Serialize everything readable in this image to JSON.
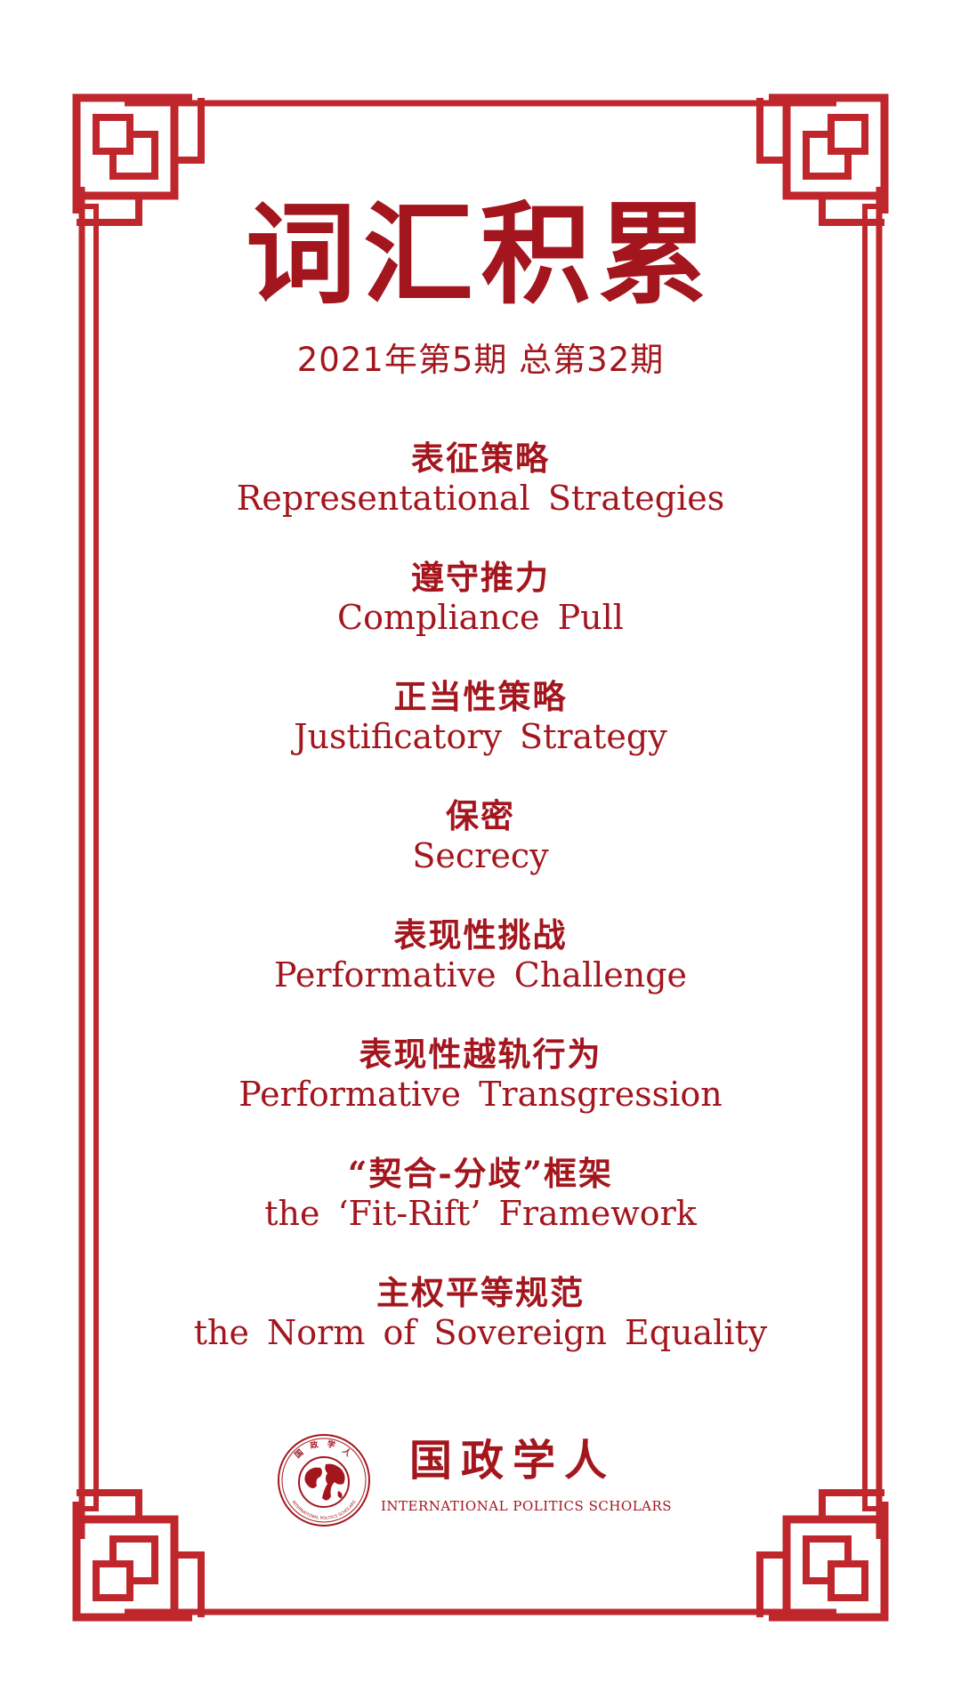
{
  "title": "词汇积累",
  "issue": "2021年第5期 总第32期",
  "terms": [
    {
      "zh": "表征策略",
      "en": "Representational Strategies"
    },
    {
      "zh": "遵守推力",
      "en": "Compliance Pull"
    },
    {
      "zh": "正当性策略",
      "en": "Justificatory Strategy"
    },
    {
      "zh": "保密",
      "en": "Secrecy"
    },
    {
      "zh": "表现性挑战",
      "en": "Performative Challenge"
    },
    {
      "zh": "表现性越轨行为",
      "en": "Performative Transgression"
    },
    {
      "zh": "“契合-分歧”框架",
      "en": "the ‘Fit-Rift’ Framework"
    },
    {
      "zh": "主权平等规范",
      "en": "the Norm of Sovereign Equality"
    }
  ],
  "logo": {
    "name_cn": "国政学人",
    "name_en": "INTERNATIONAL POLITICS SCHOLARS",
    "emblem_top": "国 政 学 人",
    "emblem_bottom": "INTERNATIONAL POLITICS SCHOLARS"
  },
  "colors": {
    "accent": "#a3161e",
    "frame": "#c0272d",
    "background": "#ffffff"
  }
}
